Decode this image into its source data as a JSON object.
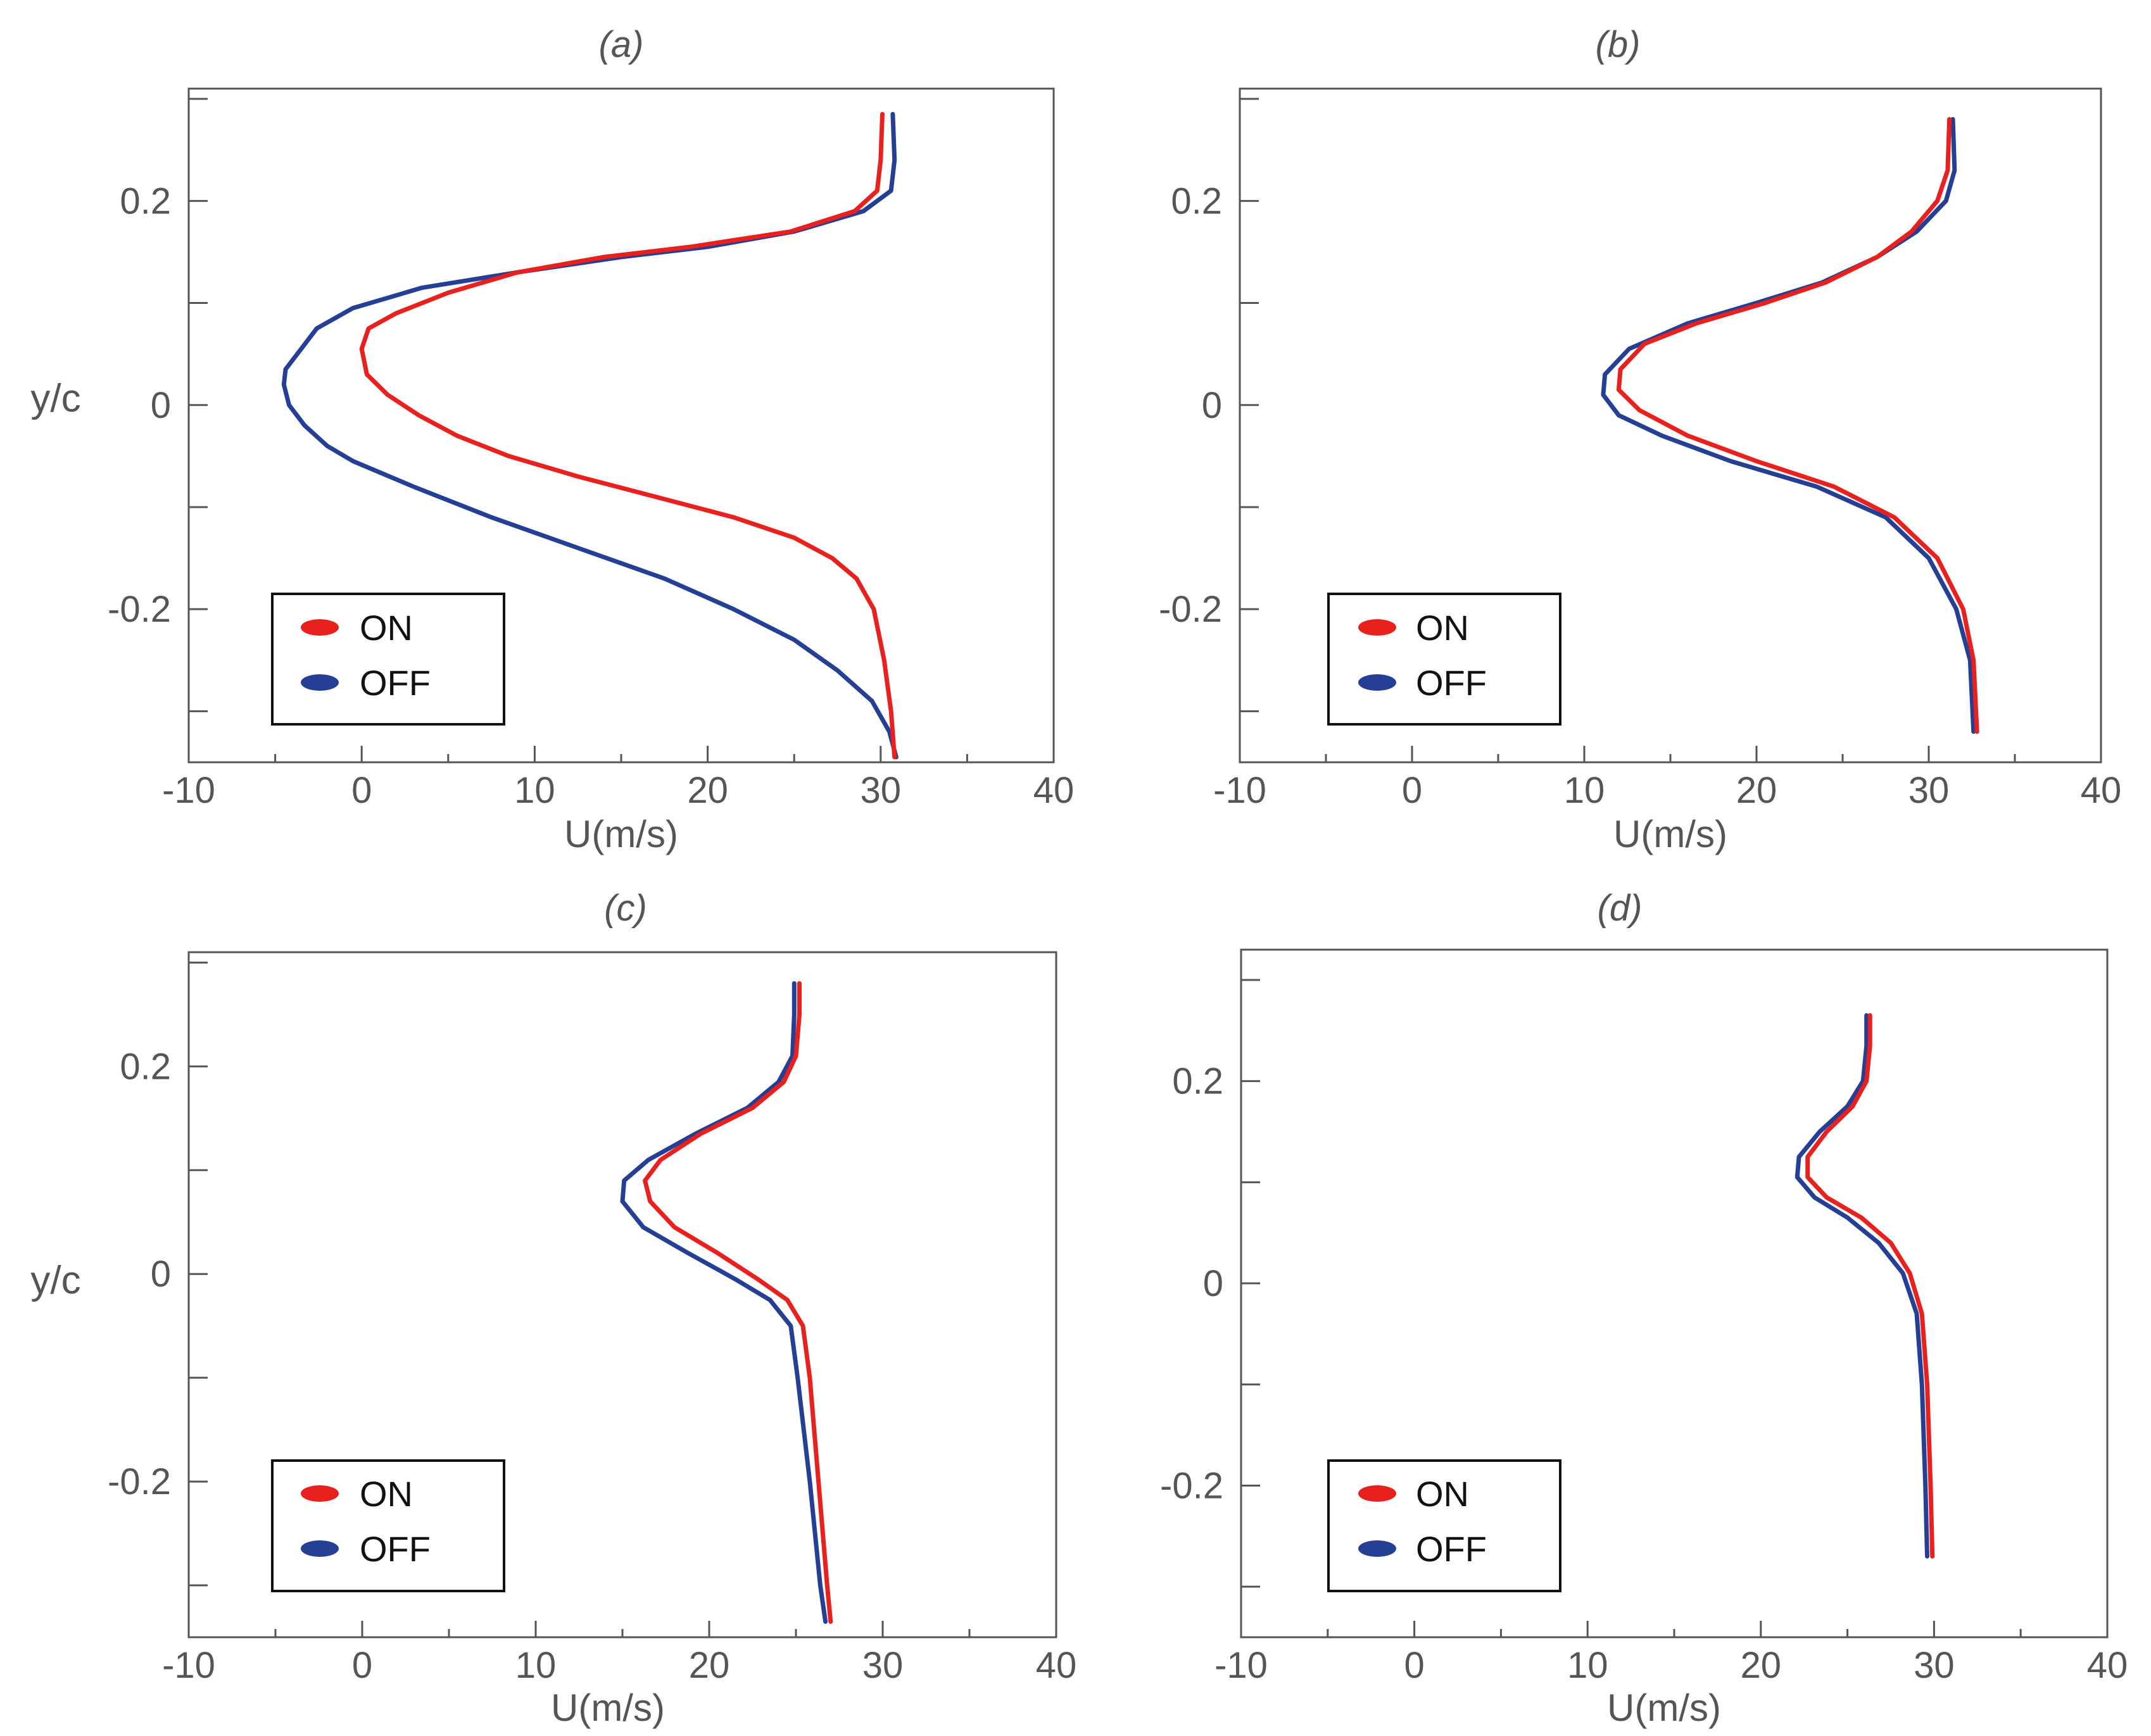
{
  "colors": {
    "on": "#e8201e",
    "off": "#253f94",
    "axis": "#555555",
    "text": "#555555"
  },
  "chart_data": [
    {
      "panel": "(a)",
      "type": "line",
      "title": "(a)",
      "xlabel": "U(m/s)",
      "ylabel": "y/c",
      "xlim": [
        -10,
        40
      ],
      "ylim": [
        -0.35,
        0.31
      ],
      "xticks": [
        -10,
        0,
        10,
        20,
        30,
        40
      ],
      "xtick_labels": [
        "-10",
        "0",
        "10",
        "20",
        "30",
        "40"
      ],
      "yticks": [
        -0.2,
        0,
        0.2
      ],
      "ytick_labels": [
        "-0.2",
        "0",
        "0.2"
      ],
      "legend": {
        "location": "lower-left",
        "entries": [
          "ON",
          "OFF"
        ]
      },
      "series": [
        {
          "name": "ON",
          "color": "#e8201e",
          "points": [
            [
              30.8,
              -0.345
            ],
            [
              30.6,
              -0.3
            ],
            [
              30.2,
              -0.25
            ],
            [
              29.6,
              -0.2
            ],
            [
              28.6,
              -0.17
            ],
            [
              27.2,
              -0.15
            ],
            [
              25,
              -0.13
            ],
            [
              21.5,
              -0.11
            ],
            [
              17,
              -0.09
            ],
            [
              12.5,
              -0.07
            ],
            [
              8.5,
              -0.05
            ],
            [
              5.5,
              -0.03
            ],
            [
              3.3,
              -0.01
            ],
            [
              1.5,
              0.01
            ],
            [
              0.3,
              0.03
            ],
            [
              0,
              0.055
            ],
            [
              0.4,
              0.075
            ],
            [
              2,
              0.09
            ],
            [
              5,
              0.11
            ],
            [
              9,
              0.13
            ],
            [
              14,
              0.145
            ],
            [
              19,
              0.155
            ],
            [
              24.8,
              0.17
            ],
            [
              28.5,
              0.19
            ],
            [
              29.8,
              0.21
            ],
            [
              30,
              0.24
            ],
            [
              30.1,
              0.285
            ]
          ]
        },
        {
          "name": "OFF",
          "color": "#253f94",
          "points": [
            [
              30.9,
              -0.345
            ],
            [
              30.5,
              -0.32
            ],
            [
              29.5,
              -0.29
            ],
            [
              27.5,
              -0.26
            ],
            [
              25,
              -0.23
            ],
            [
              21.5,
              -0.2
            ],
            [
              17.5,
              -0.17
            ],
            [
              12.5,
              -0.14
            ],
            [
              7.5,
              -0.11
            ],
            [
              3,
              -0.08
            ],
            [
              -0.5,
              -0.055
            ],
            [
              -2,
              -0.04
            ],
            [
              -3.3,
              -0.02
            ],
            [
              -4.2,
              0
            ],
            [
              -4.5,
              0.02
            ],
            [
              -4.4,
              0.035
            ],
            [
              -3.5,
              0.055
            ],
            [
              -2.6,
              0.075
            ],
            [
              -0.5,
              0.095
            ],
            [
              3.5,
              0.115
            ],
            [
              9,
              0.13
            ],
            [
              15,
              0.145
            ],
            [
              20,
              0.155
            ],
            [
              25,
              0.17
            ],
            [
              29,
              0.19
            ],
            [
              30.6,
              0.21
            ],
            [
              30.8,
              0.24
            ],
            [
              30.7,
              0.285
            ]
          ]
        }
      ]
    },
    {
      "panel": "(b)",
      "type": "line",
      "title": "(b)",
      "xlabel": "U(m/s)",
      "ylabel": "",
      "xlim": [
        -10,
        40
      ],
      "ylim": [
        -0.35,
        0.31
      ],
      "xticks": [
        -10,
        0,
        10,
        20,
        30,
        40
      ],
      "xtick_labels": [
        "-10",
        "0",
        "10",
        "20",
        "30",
        "40"
      ],
      "yticks": [
        -0.2,
        0,
        0.2
      ],
      "ytick_labels": [
        "-0.2",
        "0",
        "0.2"
      ],
      "legend": {
        "location": "lower-left",
        "entries": [
          "ON",
          "OFF"
        ]
      },
      "series": [
        {
          "name": "ON",
          "color": "#e8201e",
          "points": [
            [
              32.8,
              -0.32
            ],
            [
              32.6,
              -0.25
            ],
            [
              32,
              -0.2
            ],
            [
              30.5,
              -0.15
            ],
            [
              28,
              -0.11
            ],
            [
              24.5,
              -0.08
            ],
            [
              20,
              -0.055
            ],
            [
              16,
              -0.03
            ],
            [
              13.2,
              -0.005
            ],
            [
              12,
              0.015
            ],
            [
              12.1,
              0.035
            ],
            [
              13.5,
              0.06
            ],
            [
              16.5,
              0.08
            ],
            [
              20.5,
              0.1
            ],
            [
              24,
              0.12
            ],
            [
              27,
              0.145
            ],
            [
              29,
              0.17
            ],
            [
              30.5,
              0.2
            ],
            [
              31.1,
              0.23
            ],
            [
              31.2,
              0.28
            ]
          ]
        },
        {
          "name": "OFF",
          "color": "#253f94",
          "points": [
            [
              32.6,
              -0.32
            ],
            [
              32.4,
              -0.25
            ],
            [
              31.6,
              -0.2
            ],
            [
              30,
              -0.15
            ],
            [
              27.5,
              -0.11
            ],
            [
              23.5,
              -0.08
            ],
            [
              18.5,
              -0.055
            ],
            [
              14.5,
              -0.03
            ],
            [
              12,
              -0.01
            ],
            [
              11.1,
              0.01
            ],
            [
              11.2,
              0.03
            ],
            [
              12.6,
              0.055
            ],
            [
              16,
              0.08
            ],
            [
              20,
              0.1
            ],
            [
              23.8,
              0.12
            ],
            [
              27,
              0.145
            ],
            [
              29.3,
              0.17
            ],
            [
              31,
              0.2
            ],
            [
              31.5,
              0.23
            ],
            [
              31.4,
              0.28
            ]
          ]
        }
      ]
    },
    {
      "panel": "(c)",
      "type": "line",
      "title": "(c)",
      "xlabel": "U(m/s)",
      "ylabel": "y/c",
      "xlim": [
        -10,
        40
      ],
      "ylim": [
        -0.35,
        0.31
      ],
      "xticks": [
        -10,
        0,
        10,
        20,
        30,
        40
      ],
      "xtick_labels": [
        "-10",
        "0",
        "10",
        "20",
        "30",
        "40"
      ],
      "yticks": [
        -0.2,
        0,
        0.2
      ],
      "ytick_labels": [
        "-0.2",
        "0",
        "0.2"
      ],
      "legend": {
        "location": "lower-left",
        "entries": [
          "ON",
          "OFF"
        ]
      },
      "series": [
        {
          "name": "ON",
          "color": "#e8201e",
          "points": [
            [
              27,
              -0.335
            ],
            [
              26.8,
              -0.3
            ],
            [
              26.3,
              -0.2
            ],
            [
              25.8,
              -0.1
            ],
            [
              25.4,
              -0.05
            ],
            [
              24.5,
              -0.025
            ],
            [
              22.8,
              -0.005
            ],
            [
              20.5,
              0.02
            ],
            [
              18,
              0.045
            ],
            [
              16.6,
              0.07
            ],
            [
              16.3,
              0.09
            ],
            [
              17.2,
              0.11
            ],
            [
              19.5,
              0.135
            ],
            [
              22.5,
              0.16
            ],
            [
              24.3,
              0.185
            ],
            [
              25,
              0.21
            ],
            [
              25.2,
              0.25
            ],
            [
              25.2,
              0.28
            ]
          ]
        },
        {
          "name": "OFF",
          "color": "#253f94",
          "points": [
            [
              26.7,
              -0.335
            ],
            [
              26.4,
              -0.3
            ],
            [
              25.8,
              -0.2
            ],
            [
              25.1,
              -0.1
            ],
            [
              24.7,
              -0.05
            ],
            [
              23.5,
              -0.025
            ],
            [
              21.5,
              -0.005
            ],
            [
              18.8,
              0.02
            ],
            [
              16.2,
              0.045
            ],
            [
              15,
              0.07
            ],
            [
              15.1,
              0.09
            ],
            [
              16.5,
              0.11
            ],
            [
              19.2,
              0.135
            ],
            [
              22.2,
              0.16
            ],
            [
              24,
              0.185
            ],
            [
              24.8,
              0.21
            ],
            [
              24.9,
              0.25
            ],
            [
              24.9,
              0.28
            ]
          ]
        }
      ]
    },
    {
      "panel": "(d)",
      "type": "line",
      "title": "(d)",
      "xlabel": "U(m/s)",
      "ylabel": "",
      "xlim": [
        -10,
        40
      ],
      "ylim": [
        -0.35,
        0.33
      ],
      "xticks": [
        -10,
        0,
        10,
        20,
        30,
        40
      ],
      "xtick_labels": [
        "-10",
        "0",
        "10",
        "20",
        "30",
        "40"
      ],
      "yticks": [
        -0.2,
        0,
        0.2
      ],
      "ytick_labels": [
        "-0.2",
        "0",
        "0.2"
      ],
      "legend": {
        "location": "lower-left",
        "entries": [
          "ON",
          "OFF"
        ]
      },
      "series": [
        {
          "name": "ON",
          "color": "#e8201e",
          "points": [
            [
              29.9,
              -0.27
            ],
            [
              29.8,
              -0.2
            ],
            [
              29.6,
              -0.1
            ],
            [
              29.3,
              -0.03
            ],
            [
              28.6,
              0.01
            ],
            [
              27.5,
              0.04
            ],
            [
              25.8,
              0.065
            ],
            [
              23.8,
              0.085
            ],
            [
              22.7,
              0.105
            ],
            [
              22.7,
              0.125
            ],
            [
              23.8,
              0.15
            ],
            [
              25.3,
              0.175
            ],
            [
              26.1,
              0.2
            ],
            [
              26.3,
              0.235
            ],
            [
              26.3,
              0.265
            ]
          ]
        },
        {
          "name": "OFF",
          "color": "#253f94",
          "points": [
            [
              29.6,
              -0.27
            ],
            [
              29.5,
              -0.2
            ],
            [
              29.3,
              -0.1
            ],
            [
              29,
              -0.03
            ],
            [
              28.2,
              0.01
            ],
            [
              26.8,
              0.04
            ],
            [
              25,
              0.065
            ],
            [
              23.1,
              0.085
            ],
            [
              22.1,
              0.105
            ],
            [
              22.2,
              0.125
            ],
            [
              23.4,
              0.15
            ],
            [
              25,
              0.175
            ],
            [
              25.9,
              0.2
            ],
            [
              26.1,
              0.235
            ],
            [
              26.1,
              0.265
            ]
          ]
        }
      ]
    }
  ]
}
